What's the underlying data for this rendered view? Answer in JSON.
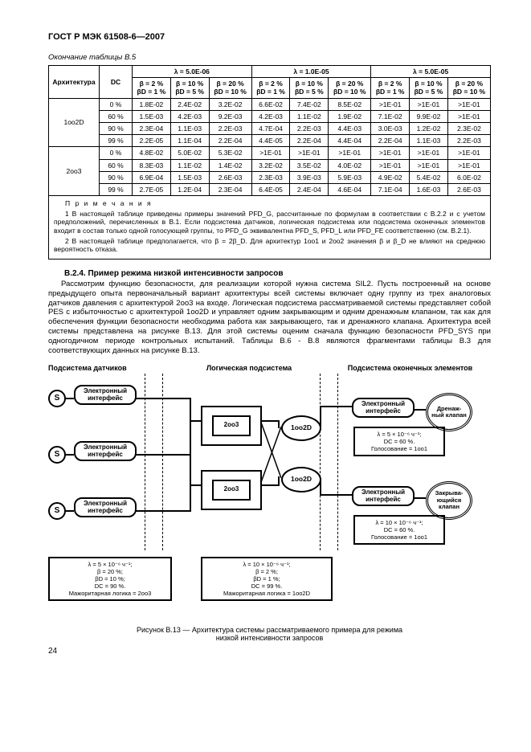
{
  "standard": "ГОСТ Р МЭК 61508-6—2007",
  "table_caption": "Окончание таблицы В.5",
  "lambda_headers": [
    "λ = 5.0E-06",
    "λ = 1.0E-05",
    "λ = 5.0E-05"
  ],
  "beta_headers": [
    "β = 2 %\nβD = 1 %",
    "β = 10 %\nβD = 5 %",
    "β = 20 %\nβD = 10 %",
    "β = 2 %\nβD = 1 %",
    "β = 10 %\nβD = 5 %",
    "β = 20 %\nβD = 10 %",
    "β = 2 %\nβD = 1 %",
    "β = 10 %\nβD = 5 %",
    "β = 20 %\nβD = 10 %"
  ],
  "col_arch": "Архитектура",
  "col_dc": "DC",
  "rows": [
    {
      "arch": "1oo2D",
      "dc": "0 %",
      "v": [
        "1.8E-02",
        "2.4E-02",
        "3.2E-02",
        "6.6E-02",
        "7.4E-02",
        "8.5E-02",
        ">1E-01",
        ">1E-01",
        ">1E-01"
      ]
    },
    {
      "arch": "",
      "dc": "60 %",
      "v": [
        "1.5E-03",
        "4.2E-03",
        "9.2E-03",
        "4.2E-03",
        "1.1E-02",
        "1.9E-02",
        "7.1E-02",
        "9.9E-02",
        ">1E-01"
      ]
    },
    {
      "arch": "",
      "dc": "90 %",
      "v": [
        "2.3E-04",
        "1.1E-03",
        "2.2E-03",
        "4.7E-04",
        "2.2E-03",
        "4.4E-03",
        "3.0E-03",
        "1.2E-02",
        "2.3E-02"
      ]
    },
    {
      "arch": "",
      "dc": "99 %",
      "v": [
        "2.2E-05",
        "1.1E-04",
        "2.2E-04",
        "4.4E-05",
        "2.2E-04",
        "4.4E-04",
        "2.2E-04",
        "1.1E-03",
        "2.2E-03"
      ]
    },
    {
      "arch": "2oo3",
      "dc": "0 %",
      "v": [
        "4.8E-02",
        "5.0E-02",
        "5.3E-02",
        ">1E-01",
        ">1E-01",
        ">1E-01",
        ">1E-01",
        ">1E-01",
        ">1E-01"
      ]
    },
    {
      "arch": "",
      "dc": "60 %",
      "v": [
        "8.3E-03",
        "1.1E-02",
        "1.4E-02",
        "3.2E-02",
        "3.5E-02",
        "4.0E-02",
        ">1E-01",
        ">1E-01",
        ">1E-01"
      ]
    },
    {
      "arch": "",
      "dc": "90 %",
      "v": [
        "6.9E-04",
        "1.5E-03",
        "2.6E-03",
        "2.3E-03",
        "3.9E-03",
        "5.9E-03",
        "4.9E-02",
        "5.4E-02",
        "6.0E-02"
      ]
    },
    {
      "arch": "",
      "dc": "99 %",
      "v": [
        "2.7E-05",
        "1.2E-04",
        "2.3E-04",
        "6.4E-05",
        "2.4E-04",
        "4.6E-04",
        "7.1E-04",
        "1.6E-03",
        "2.6E-03"
      ]
    }
  ],
  "notes_title": "П р и м е ч а н и я",
  "note1": "1 В настоящей таблице приведены примеры значений PFD_G, рассчитанные по формулам в соответствии с В.2.2 и с учетом предположений, перечисленных в В.1. Если подсистема датчиков, логическая подсистема или подсистема оконечных элементов входит в состав только одной голосующей группы, то PFD_G эквивалентна PFD_S, PFD_L или PFD_FE соответственно (см. В.2.1).",
  "note2": "2 В настоящей таблице предполагается, что β = 2β_D. Для архитектур 1oo1 и 2oo2 значения β и β_D не влияют на среднюю вероятность отказа.",
  "section_title": "В.2.4. Пример режима низкой интенсивности запросов",
  "body": "Рассмотрим функцию безопасности, для реализации которой нужна система SIL2. Пусть построенный на основе предыдущего опыта первоначальный вариант архитектуры всей системы включает одну группу из трех аналоговых датчиков давления с архитектурой 2oo3 на входе. Логическая подсистема рассматриваемой системы представляет собой PES с избыточностью с архитектурой 1oo2D и управляет одним закрывающим и одним дренажным клапаном, так как для обеспечения функции безопасности необходима работа как закрывающего, так и дренажного клапана. Архитектура всей системы представлена на рисунке В.13. Для этой системы оценим сначала функцию безопасности PFD_SYS при одногодичном периоде контрольных испытаний. Таблицы В.6 - В.8 являются фрагментами таблицы В.3 для соответствующих данных на рисунке В.13.",
  "fig_col1": "Подсистема датчиков",
  "fig_col2": "Логическая подсистема",
  "fig_col3": "Подсистема оконечных элементов",
  "iface_label": "Электронный интерфейс",
  "logic_2oo3": "2oo3",
  "logic_1oo2d": "1oo2D",
  "act1": "Дренаж-\nный\nклапан",
  "act2": "Закрыва-\nющийся\nклапан",
  "params_sensor": "λ = 5 × 10⁻⁶ ч⁻¹;\nβ = 20 %;\nβD = 10 %;\nDC = 90 %.\nМажоритарная логика = 2oo3",
  "params_logic": "λ = 10 × 10⁻⁶ ч⁻¹;\nβ = 2 %;\nβD = 1 %;\nDC = 99 %.\nМажоритарная логика = 1oo2D",
  "params_fe": "λ = 10 × 10⁻⁶ ч⁻¹;\nDC = 60 %.\nГолосование = 1oo1",
  "params_fe2": "λ = 5 × 10⁻⁶ ч⁻¹;\nDC = 60 %.\nГолосование = 1oo1",
  "fig_caption": "Рисунок В.13 — Архитектура системы рассматриваемого примера для режима\nнизкой интенсивности запросов",
  "page_num": "24"
}
